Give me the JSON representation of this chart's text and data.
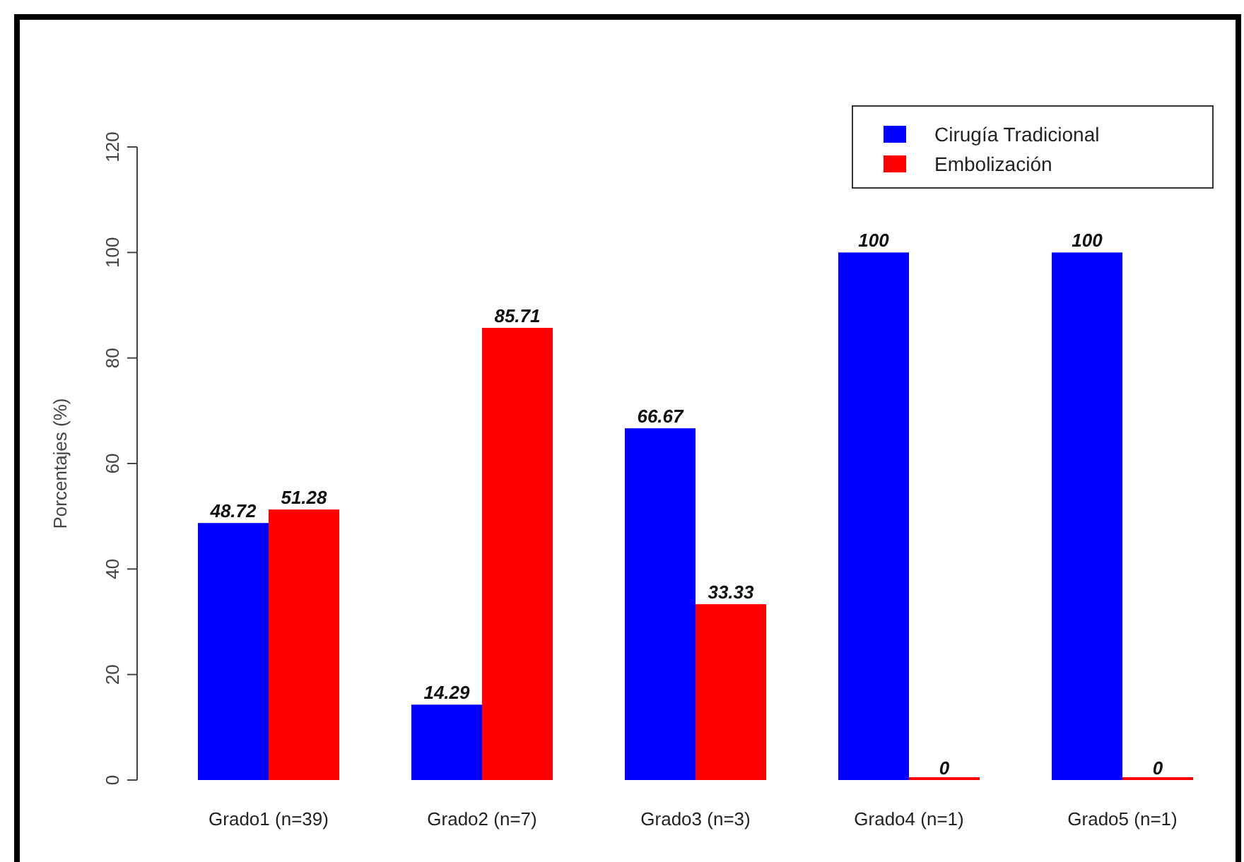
{
  "chart_data": {
    "type": "bar",
    "ylabel": "Porcentajes (%)",
    "categories": [
      "Grado1 (n=39)",
      "Grado2 (n=7)",
      "Grado3 (n=3)",
      "Grado4 (n=1)",
      "Grado5 (n=1)"
    ],
    "series": [
      {
        "name": "Cirugía Tradicional",
        "color": "#0000ff",
        "values": [
          48.72,
          14.29,
          66.67,
          100,
          100
        ]
      },
      {
        "name": "Embolización",
        "color": "#ff0000",
        "values": [
          51.28,
          85.71,
          33.33,
          0,
          0
        ]
      }
    ],
    "ylim": [
      0,
      120
    ],
    "yticks": [
      0,
      20,
      40,
      60,
      80,
      100,
      120
    ],
    "data_labels": true,
    "legend": "top right",
    "grid": false
  }
}
